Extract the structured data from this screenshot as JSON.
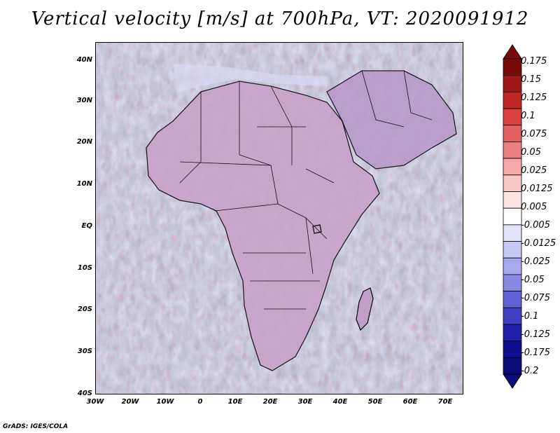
{
  "title": "Vertical velocity [m/s] at 700hPa, VT: 2020091912",
  "credit": "GrADS: IGES/COLA",
  "map": {
    "lat_labels": [
      "40N",
      "30N",
      "20N",
      "10N",
      "EQ",
      "10S",
      "20S",
      "30S",
      "40S"
    ],
    "lon_labels": [
      "30W",
      "20W",
      "10W",
      "0",
      "10E",
      "20E",
      "30E",
      "40E",
      "50E",
      "60E",
      "70E"
    ],
    "lat_range": [
      -40,
      45
    ],
    "lon_range": [
      -30,
      75
    ],
    "features": [
      "africa-coastline",
      "country-borders",
      "madagascar",
      "arabian-peninsula",
      "mediterranean-sea",
      "red-sea"
    ]
  },
  "colorbar": {
    "labels": [
      "0.175",
      "0.15",
      "0.125",
      "0.1",
      "0.075",
      "0.05",
      "0.025",
      "0.0125",
      "0.005",
      "-0.005",
      "-0.0125",
      "-0.025",
      "-0.05",
      "-0.075",
      "-0.1",
      "-0.125",
      "-0.175",
      "-0.2"
    ],
    "colors": [
      "#7a0a0a",
      "#a01818",
      "#c02828",
      "#d84040",
      "#e46060",
      "#ec8080",
      "#f4a8a8",
      "#f8c8c8",
      "#fce4e4",
      "#ffffff",
      "#e4e4fc",
      "#c8c8f4",
      "#a8a8ec",
      "#8888e0",
      "#6060d4",
      "#4040c0",
      "#2020a8",
      "#101090",
      "#0a0a78"
    ]
  }
}
